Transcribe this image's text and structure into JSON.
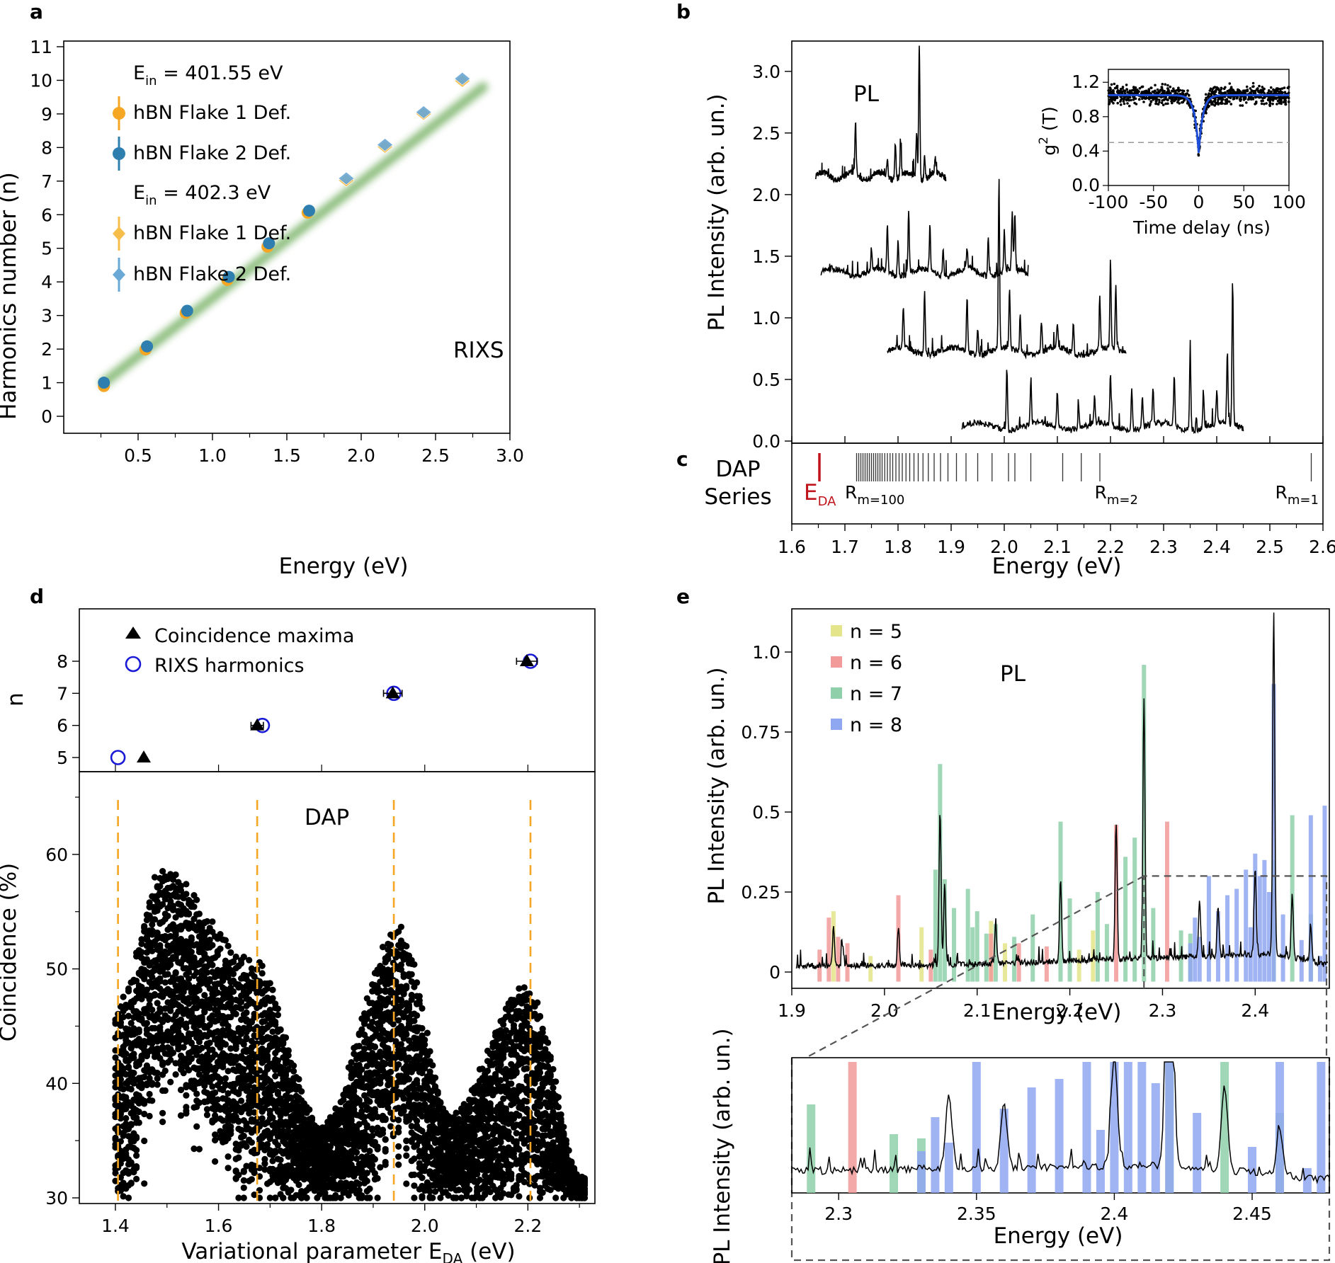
{
  "chart_data": [
    {
      "panel": "a",
      "type": "scatter",
      "xlabel": "Energy (eV)",
      "ylabel": "Harmonics number (n)",
      "xlim": [
        0.0,
        3.0
      ],
      "ylim": [
        0,
        11
      ],
      "xticks": [
        "0.5",
        "1.0",
        "1.5",
        "2.0",
        "2.5",
        "3.0"
      ],
      "yticks": [
        "0",
        "1",
        "2",
        "3",
        "4",
        "5",
        "6",
        "7",
        "8",
        "9",
        "10",
        "11"
      ],
      "annotation": "RIXS",
      "legend_groups": [
        "E_in = 401.55 eV",
        "E_in = 402.3 eV"
      ],
      "legend_group_text": [
        {
          "base": "E",
          "sub": "in",
          "rest": " = 401.55 eV"
        },
        {
          "base": "E",
          "sub": "in",
          "rest": " = 402.3 eV"
        }
      ],
      "series": [
        {
          "name": "hBN Flake 1 Def.",
          "group": 0,
          "marker": "circle",
          "color": "#f5a623",
          "x": [
            0.27,
            0.55,
            0.82,
            1.1,
            1.37,
            1.64
          ],
          "y": [
            0.9,
            1.99,
            3.08,
            4.06,
            5.05,
            6.06
          ]
        },
        {
          "name": "hBN Flake 2 Def.",
          "group": 0,
          "marker": "circle",
          "color": "#2e7fb0",
          "x": [
            0.27,
            0.56,
            0.83,
            1.11,
            1.38,
            1.65
          ],
          "y": [
            1.0,
            2.08,
            3.14,
            4.15,
            5.15,
            6.12
          ]
        },
        {
          "name": "hBN Flake 1 Def.",
          "group": 1,
          "marker": "diamond",
          "color": "#f6bd4a",
          "x": [
            1.9,
            2.16,
            2.42,
            2.68
          ],
          "y": [
            7.02,
            8.02,
            9.0,
            9.98
          ]
        },
        {
          "name": "hBN Flake 2 Def.",
          "group": 1,
          "marker": "diamond",
          "color": "#6aa8d6",
          "x": [
            1.9,
            2.16,
            2.42,
            2.68
          ],
          "y": [
            7.08,
            8.08,
            9.05,
            10.05
          ]
        }
      ],
      "fit_line": {
        "x": [
          0.27,
          2.82
        ],
        "y": [
          1.0,
          9.8
        ],
        "color": "#7cb46a"
      }
    },
    {
      "panel": "b",
      "type": "line",
      "xlabel": "Energy (eV)",
      "ylabel": "PL Intensity (arb. un.)",
      "xlim": [
        1.6,
        2.6
      ],
      "ylim": [
        0.0,
        3.2
      ],
      "xticks": [
        "1.6",
        "1.7",
        "1.8",
        "1.9",
        "2.0",
        "2.1",
        "2.2",
        "2.3",
        "2.4",
        "2.5",
        "2.6"
      ],
      "yticks": [
        "0.0",
        "0.5",
        "1.0",
        "1.5",
        "2.0",
        "2.5",
        "3.0"
      ],
      "annotation": "PL",
      "spectra": [
        {
          "x0": 1.645,
          "x1": 1.89,
          "base": 2.15,
          "peaks": [
            [
              1.72,
              0.43
            ],
            [
              1.795,
              0.3
            ],
            [
              1.805,
              0.28
            ],
            [
              1.84,
              1.07
            ],
            [
              1.835,
              0.38
            ],
            [
              1.78,
              0.15
            ],
            [
              1.85,
              0.18
            ],
            [
              1.87,
              0.12
            ]
          ]
        },
        {
          "x0": 1.655,
          "x1": 2.045,
          "base": 1.37,
          "peaks": [
            [
              1.78,
              0.38
            ],
            [
              1.82,
              0.5
            ],
            [
              1.8,
              0.28
            ],
            [
              1.86,
              0.35
            ],
            [
              1.885,
              0.22
            ],
            [
              1.97,
              0.3
            ],
            [
              2.015,
              0.48
            ],
            [
              2.02,
              0.45
            ],
            [
              2.0,
              0.3
            ],
            [
              1.75,
              0.18
            ],
            [
              1.93,
              0.15
            ]
          ]
        },
        {
          "x0": 1.78,
          "x1": 2.23,
          "base": 0.73,
          "peaks": [
            [
              1.81,
              0.33
            ],
            [
              1.85,
              0.5
            ],
            [
              1.93,
              0.45
            ],
            [
              1.99,
              1.35
            ],
            [
              2.01,
              0.47
            ],
            [
              2.03,
              0.3
            ],
            [
              2.07,
              0.25
            ],
            [
              2.13,
              0.23
            ],
            [
              2.18,
              0.35
            ],
            [
              2.2,
              0.72
            ],
            [
              2.21,
              0.5
            ],
            [
              1.95,
              0.22
            ],
            [
              2.1,
              0.2
            ]
          ]
        },
        {
          "x0": 1.92,
          "x1": 2.45,
          "base": 0.12,
          "peaks": [
            [
              2.005,
              0.5
            ],
            [
              2.05,
              0.35
            ],
            [
              2.1,
              0.3
            ],
            [
              2.2,
              0.42
            ],
            [
              2.24,
              0.35
            ],
            [
              2.26,
              0.28
            ],
            [
              2.32,
              0.43
            ],
            [
              2.35,
              0.62
            ],
            [
              2.375,
              0.3
            ],
            [
              2.4,
              0.28
            ],
            [
              2.42,
              0.6
            ],
            [
              2.43,
              1.2
            ],
            [
              2.28,
              0.3
            ],
            [
              2.17,
              0.22
            ],
            [
              2.14,
              0.2
            ]
          ]
        }
      ],
      "inset": {
        "xlabel": "Time delay (ns)",
        "ylabel": "g² (T)",
        "ylabel_base": "g",
        "ylabel_sup": "2",
        "ylabel_rest": " (T)",
        "xlim": [
          -100,
          100
        ],
        "ylim": [
          0.0,
          1.3
        ],
        "xticks": [
          "-100",
          "-50",
          "0",
          "50",
          "100"
        ],
        "yticks": [
          "0.0",
          "0.4",
          "0.8",
          "1.2"
        ],
        "threshold": 0.5,
        "g2_plateau": 1.05,
        "g2_min": 0.38,
        "g2_width_ns": 4.5,
        "fit_color": "#1f4fd8"
      }
    },
    {
      "panel": "c",
      "type": "event",
      "title_lines": [
        "DAP",
        "Series"
      ],
      "xlim": [
        1.6,
        2.6
      ],
      "edA": 1.652,
      "edA_label": {
        "base": "E",
        "sub": "DA"
      },
      "marker_labels": [
        {
          "base": "R",
          "sub": "m=100",
          "x": 1.7
        },
        {
          "base": "R",
          "sub": "m=2",
          "x": 2.17
        },
        {
          "base": "R",
          "sub": "m=1",
          "x": 2.51
        }
      ],
      "lines": [
        1.722,
        1.726,
        1.73,
        1.734,
        1.738,
        1.742,
        1.746,
        1.75,
        1.754,
        1.758,
        1.762,
        1.766,
        1.77,
        1.775,
        1.78,
        1.785,
        1.79,
        1.796,
        1.802,
        1.808,
        1.815,
        1.822,
        1.83,
        1.838,
        1.847,
        1.857,
        1.868,
        1.88,
        1.894,
        1.91,
        1.928,
        1.95,
        1.977,
        2.008,
        2.02,
        2.05,
        2.11,
        2.145,
        2.18,
        2.578
      ]
    },
    {
      "panel": "d",
      "type": "scatter",
      "xlabel": "Variational parameter E_DA (eV)",
      "xlabel_text": {
        "base": "Variational parameter E",
        "sub": "DA",
        "rest": " (eV)"
      },
      "ylabel_top": "n",
      "ylabel_bottom": "Coincidence (%)",
      "xlim": [
        1.33,
        2.33
      ],
      "ylim_top": [
        4.6,
        9.0
      ],
      "ylim_bottom": [
        29.8,
        67.0
      ],
      "xticks": [
        "1.4",
        "1.6",
        "1.8",
        "2.0",
        "2.2"
      ],
      "yticks_top": [
        "5",
        "6",
        "7",
        "8"
      ],
      "yticks_bottom": [
        "30",
        "40",
        "50",
        "60"
      ],
      "annotation": "DAP",
      "series_top": [
        {
          "name": "Coincidence maxima",
          "marker": "triangle",
          "x": [
            1.455,
            1.675,
            1.938,
            2.198
          ],
          "y": [
            5,
            6,
            7,
            8
          ],
          "xerr": [
            0.0,
            0.012,
            0.018,
            0.02
          ]
        },
        {
          "name": "RIXS  harmonics",
          "marker": "open-circle",
          "color": "#1a1ad6",
          "x": [
            1.405,
            1.685,
            1.94,
            2.205
          ],
          "y": [
            5,
            6,
            7,
            8
          ]
        }
      ],
      "vlines": [
        1.405,
        1.675,
        1.94,
        2.205
      ],
      "vline_color": "#f5a623",
      "coincidence_model": {
        "x0": 1.4,
        "x1": 2.31,
        "peaks": [
          [
            1.49,
            58
          ],
          [
            1.67,
            50
          ],
          [
            1.95,
            53
          ],
          [
            2.2,
            48
          ]
        ],
        "troughs": [
          [
            1.8,
            36
          ],
          [
            2.05,
            37
          ],
          [
            2.31,
            31
          ]
        ]
      }
    },
    {
      "panel": "e",
      "type": "bar+line",
      "xlabel": "Energy (eV)",
      "ylabel": "PL Intensity (arb. un.)",
      "xlim": [
        1.9,
        2.48
      ],
      "ylim": [
        -0.03,
        1.1
      ],
      "xticks": [
        "1.9",
        "2.0",
        "2.1",
        "2.2",
        "2.3",
        "2.4"
      ],
      "yticks": [
        "0",
        "0.25",
        "0.5",
        "0.75",
        "1.0"
      ],
      "annotation": "PL",
      "legend": [
        {
          "name": "n = 5",
          "color": "#e4e48a"
        },
        {
          "name": "n = 6",
          "color": "#f29a9a"
        },
        {
          "name": "n = 7",
          "color": "#8fd0aa"
        },
        {
          "name": "n = 8",
          "color": "#8fa6f0"
        }
      ],
      "bars": {
        "n5": [
          [
            1.945,
            0.19
          ],
          [
            1.985,
            0.05
          ],
          [
            2.04,
            0.14
          ],
          [
            2.115,
            0.16
          ],
          [
            2.13,
            0.09
          ],
          [
            2.21,
            0.07
          ],
          [
            2.225,
            0.13
          ]
        ],
        "n6": [
          [
            1.93,
            0.07
          ],
          [
            1.94,
            0.17
          ],
          [
            1.95,
            0.11
          ],
          [
            1.96,
            0.09
          ],
          [
            2.015,
            0.24
          ],
          [
            2.05,
            0.07
          ],
          [
            2.115,
            0.12
          ],
          [
            2.145,
            0.09
          ],
          [
            2.175,
            0.08
          ],
          [
            2.25,
            0.46
          ],
          [
            2.305,
            0.47
          ]
        ],
        "n7": [
          [
            2.06,
            0.65
          ],
          [
            2.055,
            0.32
          ],
          [
            2.065,
            0.29
          ],
          [
            2.075,
            0.2
          ],
          [
            2.09,
            0.26
          ],
          [
            2.095,
            0.14
          ],
          [
            2.1,
            0.19
          ],
          [
            2.11,
            0.12
          ],
          [
            2.12,
            0.15
          ],
          [
            2.14,
            0.11
          ],
          [
            2.16,
            0.18
          ],
          [
            2.19,
            0.47
          ],
          [
            2.2,
            0.23
          ],
          [
            2.23,
            0.25
          ],
          [
            2.24,
            0.15
          ],
          [
            2.26,
            0.36
          ],
          [
            2.27,
            0.42
          ],
          [
            2.28,
            0.96
          ],
          [
            2.29,
            0.2
          ],
          [
            2.32,
            0.13
          ],
          [
            2.33,
            0.12
          ],
          [
            2.44,
            0.49
          ],
          [
            2.42,
            0.35
          ],
          [
            2.46,
            0.18
          ]
        ],
        "n8": [
          [
            2.33,
            0.09
          ],
          [
            2.335,
            0.17
          ],
          [
            2.34,
            0.11
          ],
          [
            2.35,
            0.3
          ],
          [
            2.36,
            0.19
          ],
          [
            2.37,
            0.24
          ],
          [
            2.38,
            0.26
          ],
          [
            2.39,
            0.32
          ],
          [
            2.395,
            0.14
          ],
          [
            2.4,
            0.37
          ],
          [
            2.405,
            0.3
          ],
          [
            2.41,
            0.35
          ],
          [
            2.415,
            0.25
          ],
          [
            2.42,
            0.9
          ],
          [
            2.43,
            0.18
          ],
          [
            2.45,
            0.1
          ],
          [
            2.46,
            0.49
          ],
          [
            2.47,
            0.05
          ],
          [
            2.475,
            0.52
          ]
        ]
      },
      "spectrum_peaks": [
        [
          1.945,
          0.12
        ],
        [
          1.955,
          0.06
        ],
        [
          2.015,
          0.12
        ],
        [
          2.06,
          0.48
        ],
        [
          2.065,
          0.25
        ],
        [
          2.12,
          0.12
        ],
        [
          2.19,
          0.25
        ],
        [
          2.25,
          0.43
        ],
        [
          2.28,
          0.82
        ],
        [
          2.34,
          0.18
        ],
        [
          2.36,
          0.15
        ],
        [
          2.4,
          0.27
        ],
        [
          2.42,
          1.07
        ],
        [
          2.44,
          0.2
        ],
        [
          2.46,
          0.1
        ]
      ],
      "zoom_box": {
        "x0": 2.28,
        "x1": 2.48,
        "y1": 0.3
      },
      "inset": {
        "xlabel": "Energy (eV)",
        "ylabel": "PL Intensity (arb. un.)",
        "xlim": [
          2.283,
          2.478
        ],
        "xticks": [
          "2.3",
          "2.35",
          "2.4",
          "2.45"
        ]
      }
    }
  ],
  "panel_labels": [
    "a",
    "b",
    "c",
    "d",
    "e"
  ]
}
